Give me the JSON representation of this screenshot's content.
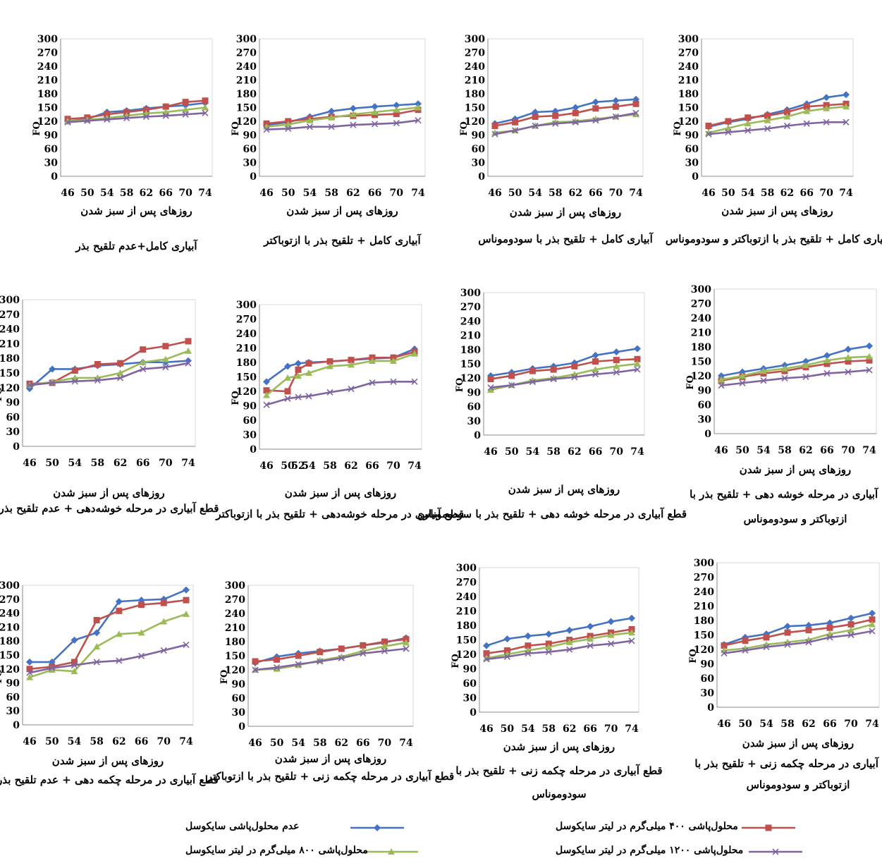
{
  "legend": [
    {
      "key": "none",
      "label": "عدم محلول‌پاشی سایکوسل",
      "color": "#4472C4",
      "marker": "diamond"
    },
    {
      "key": "c400",
      "label": "محلول‌پاشی ۴۰۰ میلی‌گرم در لیتر سایکوسل",
      "color": "#C0504D",
      "marker": "square"
    },
    {
      "key": "c800",
      "label": "محلول‌پاشی ۸۰۰ میلی‌گرم در لیتر سایکوسل",
      "color": "#9BBB59",
      "marker": "triangle"
    },
    {
      "key": "c1200",
      "label": "محلول‌پاشی ۱۲۰۰ میلی‌گرم در لیتر سایکوسل",
      "color": "#8064A2",
      "marker": "x"
    }
  ],
  "chart_data": [
    {
      "type": "line",
      "ylabel": "FO",
      "xlabel": "روزهای پس از سبز شدن",
      "caption": [
        "آبیاری کامل+عدم تلقیح بذر"
      ],
      "x": [
        46,
        50,
        54,
        58,
        62,
        66,
        70,
        74
      ],
      "ylim": [
        0,
        300
      ],
      "yticks": [
        0,
        30,
        60,
        90,
        120,
        150,
        180,
        210,
        240,
        270,
        300
      ],
      "series": [
        {
          "name": "عدم محلول‌پاشی سایکوسل",
          "values": [
            120,
            125,
            140,
            143,
            148,
            152,
            155,
            160
          ]
        },
        {
          "name": "محلول‌پاشی ۴۰۰ میلی‌گرم در لیتر سایکوسل",
          "values": [
            125,
            128,
            135,
            140,
            145,
            152,
            162,
            165
          ]
        },
        {
          "name": "محلول‌پاشی ۸۰۰ میلی‌گرم در لیتر سایکوسل",
          "values": [
            120,
            123,
            127,
            132,
            137,
            140,
            145,
            150
          ]
        },
        {
          "name": "محلول‌پاشی ۱۲۰۰ میلی‌گرم در لیتر سایکوسل",
          "values": [
            118,
            121,
            124,
            127,
            130,
            132,
            135,
            138
          ]
        }
      ]
    },
    {
      "type": "line",
      "ylabel": "FO",
      "xlabel": "روزهای پس از سبز شدن",
      "caption": [
        "آبیاری کامل + تلقیح بذر با ازتوباکتر"
      ],
      "x": [
        46,
        50,
        54,
        58,
        62,
        66,
        70,
        74
      ],
      "ylim": [
        0,
        300
      ],
      "yticks": [
        0,
        30,
        60,
        90,
        120,
        150,
        180,
        210,
        240,
        270,
        300
      ],
      "series": [
        {
          "name": "عدم محلول‌پاشی سایکوسل",
          "values": [
            112,
            118,
            130,
            142,
            148,
            152,
            155,
            158
          ]
        },
        {
          "name": "محلول‌پاشی ۴۰۰ میلی‌گرم در لیتر سایکوسل",
          "values": [
            115,
            120,
            125,
            130,
            132,
            134,
            136,
            145
          ]
        },
        {
          "name": "محلول‌پاشی ۸۰۰ میلی‌گرم در لیتر سایکوسل",
          "values": [
            108,
            113,
            122,
            128,
            135,
            140,
            145,
            150
          ]
        },
        {
          "name": "محلول‌پاشی ۱۲۰۰ میلی‌گرم در لیتر سایکوسل",
          "values": [
            102,
            104,
            108,
            108,
            112,
            114,
            116,
            122
          ]
        }
      ]
    },
    {
      "type": "line",
      "ylabel": "FO",
      "xlabel": "روزهای پس از سبز شدن",
      "caption": [
        "آبیاری کامل + تلقیح بذر با سودوموناس"
      ],
      "x": [
        46,
        50,
        54,
        58,
        62,
        66,
        70,
        74
      ],
      "ylim": [
        0,
        300
      ],
      "yticks": [
        0,
        30,
        60,
        90,
        120,
        150,
        180,
        210,
        240,
        270,
        300
      ],
      "series": [
        {
          "name": "عدم محلول‌پاشی سایکوسل",
          "values": [
            115,
            125,
            140,
            142,
            150,
            162,
            165,
            168
          ]
        },
        {
          "name": "محلول‌پاشی ۴۰۰ میلی‌گرم در لیتر سایکوسل",
          "values": [
            110,
            118,
            130,
            132,
            138,
            148,
            152,
            158
          ]
        },
        {
          "name": "محلول‌پاشی ۸۰۰ میلی‌گرم در لیتر سایکوسل",
          "values": [
            95,
            100,
            110,
            118,
            120,
            125,
            130,
            135
          ]
        },
        {
          "name": "محلول‌پاشی ۱۲۰۰ میلی‌گرم در لیتر سایکوسل",
          "values": [
            92,
            100,
            110,
            115,
            118,
            122,
            130,
            138
          ]
        }
      ]
    },
    {
      "type": "line",
      "ylabel": "FO",
      "xlabel": "روزهای پس از سبز شدن",
      "caption": [
        "آبیاری کامل + تلقیح بذر با ازتوباکتر و سودوموناس"
      ],
      "x": [
        46,
        50,
        54,
        58,
        62,
        66,
        70,
        74
      ],
      "ylim": [
        0,
        300
      ],
      "yticks": [
        0,
        30,
        60,
        90,
        120,
        150,
        180,
        210,
        240,
        270,
        300
      ],
      "series": [
        {
          "name": "عدم محلول‌پاشی سایکوسل",
          "values": [
            108,
            118,
            125,
            135,
            145,
            158,
            172,
            178
          ]
        },
        {
          "name": "محلول‌پاشی ۴۰۰ میلی‌گرم در لیتر سایکوسل",
          "values": [
            110,
            120,
            128,
            132,
            140,
            152,
            155,
            158
          ]
        },
        {
          "name": "محلول‌پاشی ۸۰۰ میلی‌گرم در لیتر سایکوسل",
          "values": [
            95,
            105,
            115,
            122,
            130,
            142,
            148,
            152
          ]
        },
        {
          "name": "محلول‌پاشی ۱۲۰۰ میلی‌گرم در لیتر سایکوسل",
          "values": [
            92,
            96,
            100,
            104,
            110,
            115,
            118,
            118
          ]
        }
      ]
    },
    {
      "type": "line",
      "ylabel": "FO",
      "xlabel": "روزهای پس از سبز شدن",
      "caption": [
        "قطع آبیاری در مرحله خوشه‌دهی + عدم تلقیح بذر"
      ],
      "x": [
        46,
        50,
        54,
        58,
        62,
        66,
        70,
        74
      ],
      "ylim": [
        0,
        300
      ],
      "yticks": [
        0,
        30,
        60,
        90,
        120,
        150,
        180,
        210,
        240,
        270,
        300
      ],
      "series": [
        {
          "name": "عدم محلول‌پاشی سایکوسل",
          "values": [
            118,
            158,
            158,
            165,
            168,
            172,
            172,
            175
          ]
        },
        {
          "name": "محلول‌پاشی ۴۰۰ میلی‌گرم در لیتر سایکوسل",
          "values": [
            128,
            130,
            155,
            168,
            170,
            198,
            205,
            215
          ]
        },
        {
          "name": "محلول‌پاشی ۸۰۰ میلی‌گرم در لیتر سایکوسل",
          "values": [
            125,
            132,
            140,
            140,
            150,
            172,
            178,
            195
          ]
        },
        {
          "name": "محلول‌پاشی ۱۲۰۰ میلی‌گرم در لیتر سایکوسل",
          "values": [
            125,
            130,
            133,
            135,
            140,
            158,
            162,
            170
          ]
        }
      ]
    },
    {
      "type": "line",
      "ylabel": "FO",
      "xlabel": "روزهای پس از سبز شدن",
      "caption": [
        "قطع آبیاری در مرحله خوشه‌دهی + تلقیح بذر با ازتوباکتر"
      ],
      "x": [
        46,
        50,
        52,
        54,
        58,
        62,
        66,
        70,
        74
      ],
      "ylim": [
        0,
        300
      ],
      "yticks": [
        0,
        30,
        60,
        90,
        120,
        150,
        180,
        210,
        240,
        270,
        300
      ],
      "series": [
        {
          "name": "عدم محلول‌پاشی سایکوسل",
          "values": [
            140,
            172,
            178,
            180,
            182,
            185,
            188,
            190,
            208
          ]
        },
        {
          "name": "محلول‌پاشی ۴۰۰ میلی‌گرم در لیتر سایکوسل",
          "values": [
            122,
            120,
            165,
            178,
            182,
            185,
            190,
            190,
            202
          ]
        },
        {
          "name": "محلول‌پاشی ۸۰۰ میلی‌گرم در لیتر سایکوسل",
          "values": [
            112,
            148,
            152,
            158,
            172,
            175,
            183,
            183,
            198
          ]
        },
        {
          "name": "محلول‌پاشی ۱۲۰۰ میلی‌گرم در لیتر سایکوسل",
          "values": [
            92,
            105,
            108,
            110,
            118,
            125,
            138,
            140,
            140
          ]
        }
      ]
    },
    {
      "type": "line",
      "ylabel": "FO",
      "xlabel": "روزهای پس از سبز شدن",
      "caption": [
        "قطع آبیاری در مرحله خوشه دهی + تلقیح بذر با سودوموناس"
      ],
      "x": [
        46,
        50,
        54,
        58,
        62,
        66,
        70,
        74
      ],
      "ylim": [
        0,
        300
      ],
      "yticks": [
        0,
        30,
        60,
        90,
        120,
        150,
        180,
        210,
        240,
        270,
        300
      ],
      "series": [
        {
          "name": "عدم محلول‌پاشی سایکوسل",
          "values": [
            125,
            132,
            140,
            145,
            152,
            168,
            175,
            182
          ]
        },
        {
          "name": "محلول‌پاشی ۴۰۰ میلی‌گرم در لیتر سایکوسل",
          "values": [
            118,
            125,
            135,
            138,
            145,
            155,
            158,
            160
          ]
        },
        {
          "name": "محلول‌پاشی ۸۰۰ میلی‌گرم در لیتر سایکوسل",
          "values": [
            95,
            105,
            115,
            120,
            128,
            138,
            145,
            150
          ]
        },
        {
          "name": "محلول‌پاشی ۱۲۰۰ میلی‌گرم در لیتر سایکوسل",
          "values": [
            100,
            105,
            112,
            118,
            122,
            128,
            132,
            138
          ]
        }
      ]
    },
    {
      "type": "line",
      "ylabel": "FO",
      "xlabel": "روزهای پس از سبز شدن",
      "caption": [
        "قطع آبیاری در مرحله خوشه دهی + تلقیح بذر با",
        "ازتوباکتر و سودوموناس"
      ],
      "x": [
        46,
        50,
        54,
        58,
        62,
        66,
        70,
        74
      ],
      "ylim": [
        0,
        300
      ],
      "yticks": [
        0,
        30,
        60,
        90,
        120,
        150,
        180,
        210,
        240,
        270,
        300
      ],
      "series": [
        {
          "name": "عدم محلول‌پاشی سایکوسل",
          "values": [
            120,
            128,
            135,
            142,
            150,
            162,
            175,
            182
          ]
        },
        {
          "name": "محلول‌پاشی ۴۰۰ میلی‌گرم در لیتر سایکوسل",
          "values": [
            110,
            118,
            125,
            130,
            138,
            145,
            150,
            152
          ]
        },
        {
          "name": "محلول‌پاشی ۸۰۰ میلی‌گرم در لیتر سایکوسل",
          "values": [
            112,
            120,
            130,
            135,
            142,
            152,
            158,
            160
          ]
        },
        {
          "name": "محلول‌پاشی ۱۲۰۰ میلی‌گرم در لیتر سایکوسل",
          "values": [
            100,
            105,
            110,
            115,
            118,
            125,
            128,
            132
          ]
        }
      ]
    },
    {
      "type": "line",
      "ylabel": "FO",
      "xlabel": "روزهای پس از سبز شدن",
      "caption": [
        "قطع آبیاری در مرحله چکمه دهی + عدم تلقیح بذر"
      ],
      "x": [
        46,
        50,
        54,
        58,
        62,
        66,
        70,
        74
      ],
      "ylim": [
        0,
        300
      ],
      "yticks": [
        0,
        30,
        60,
        90,
        120,
        150,
        180,
        210,
        240,
        270,
        300
      ],
      "series": [
        {
          "name": "عدم محلول‌پاشی سایکوسل",
          "values": [
            135,
            135,
            182,
            198,
            265,
            268,
            270,
            290
          ]
        },
        {
          "name": "محلول‌پاشی ۴۰۰ میلی‌گرم در لیتر سایکوسل",
          "values": [
            120,
            125,
            135,
            225,
            245,
            258,
            262,
            268
          ]
        },
        {
          "name": "محلول‌پاشی ۸۰۰ میلی‌گرم در لیتر سایکوسل",
          "values": [
            102,
            118,
            115,
            168,
            195,
            198,
            222,
            238
          ]
        },
        {
          "name": "محلول‌پاشی ۱۲۰۰ میلی‌گرم در لیتر سایکوسل",
          "values": [
            112,
            122,
            128,
            135,
            138,
            148,
            160,
            172
          ]
        }
      ]
    },
    {
      "type": "line",
      "ylabel": "FO",
      "xlabel": "روزهای پس از سبز شدن",
      "caption": [
        "قطع آبیاری در مرحله چکمه زنی + تلقیح بذر با ازتوباکتر"
      ],
      "x": [
        46,
        50,
        54,
        58,
        62,
        66,
        70,
        74
      ],
      "ylim": [
        0,
        300
      ],
      "yticks": [
        0,
        30,
        60,
        90,
        120,
        150,
        180,
        210,
        240,
        270,
        300
      ],
      "series": [
        {
          "name": "عدم محلول‌پاشی سایکوسل",
          "values": [
            135,
            148,
            155,
            160,
            165,
            172,
            178,
            188
          ]
        },
        {
          "name": "محلول‌پاشی ۴۰۰ میلی‌گرم در لیتر سایکوسل",
          "values": [
            138,
            142,
            150,
            158,
            165,
            172,
            180,
            185
          ]
        },
        {
          "name": "محلول‌پاشی ۸۰۰ میلی‌گرم در لیتر سایکوسل",
          "values": [
            120,
            122,
            130,
            140,
            148,
            160,
            170,
            178
          ]
        },
        {
          "name": "محلول‌پاشی ۱۲۰۰ میلی‌گرم در لیتر سایکوسل",
          "values": [
            120,
            125,
            132,
            138,
            145,
            155,
            160,
            165
          ]
        }
      ]
    },
    {
      "type": "line",
      "ylabel": "FO",
      "xlabel": "روزهای پس از سبز شدن",
      "caption": [
        "قطع آبیاری در مرحله چکمه زنی + تلقیح بذر با",
        "سودوموناس"
      ],
      "x": [
        46,
        50,
        54,
        58,
        62,
        66,
        70,
        74
      ],
      "ylim": [
        0,
        300
      ],
      "yticks": [
        0,
        30,
        60,
        90,
        120,
        150,
        180,
        210,
        240,
        270,
        300
      ],
      "series": [
        {
          "name": "عدم محلول‌پاشی سایکوسل",
          "values": [
            138,
            152,
            158,
            162,
            170,
            178,
            188,
            195
          ]
        },
        {
          "name": "محلول‌پاشی ۴۰۰ میلی‌گرم در لیتر سایکوسل",
          "values": [
            122,
            128,
            138,
            142,
            150,
            158,
            165,
            172
          ]
        },
        {
          "name": "محلول‌پاشی ۸۰۰ میلی‌گرم در لیتر سایکوسل",
          "values": [
            112,
            120,
            128,
            135,
            145,
            152,
            160,
            165
          ]
        },
        {
          "name": "محلول‌پاشی ۱۲۰۰ میلی‌گرم در لیتر سایکوسل",
          "values": [
            110,
            115,
            122,
            125,
            130,
            138,
            142,
            148
          ]
        }
      ]
    },
    {
      "type": "line",
      "ylabel": "FO",
      "xlabel": "روزهای پس از سبز شدن",
      "caption": [
        "قطع آبیاری در مرحله چکمه زنی + تلقیح بذر با",
        "ازتوباکتر و سودوموناس"
      ],
      "x": [
        46,
        50,
        54,
        58,
        62,
        66,
        70,
        74
      ],
      "ylim": [
        0,
        300
      ],
      "yticks": [
        0,
        30,
        60,
        90,
        120,
        150,
        180,
        210,
        240,
        270,
        300
      ],
      "series": [
        {
          "name": "عدم محلول‌پاشی سایکوسل",
          "values": [
            130,
            145,
            152,
            168,
            170,
            175,
            185,
            195
          ]
        },
        {
          "name": "محلول‌پاشی ۴۰۰ میلی‌گرم در لیتر سایکوسل",
          "values": [
            128,
            138,
            145,
            155,
            160,
            165,
            172,
            182
          ]
        },
        {
          "name": "محلول‌پاشی ۸۰۰ میلی‌گرم در لیتر سایکوسل",
          "values": [
            118,
            122,
            130,
            135,
            140,
            152,
            160,
            172
          ]
        },
        {
          "name": "محلول‌پاشی ۱۲۰۰ میلی‌گرم در لیتر سایکوسل",
          "values": [
            112,
            118,
            125,
            130,
            135,
            145,
            150,
            158
          ]
        }
      ]
    }
  ]
}
